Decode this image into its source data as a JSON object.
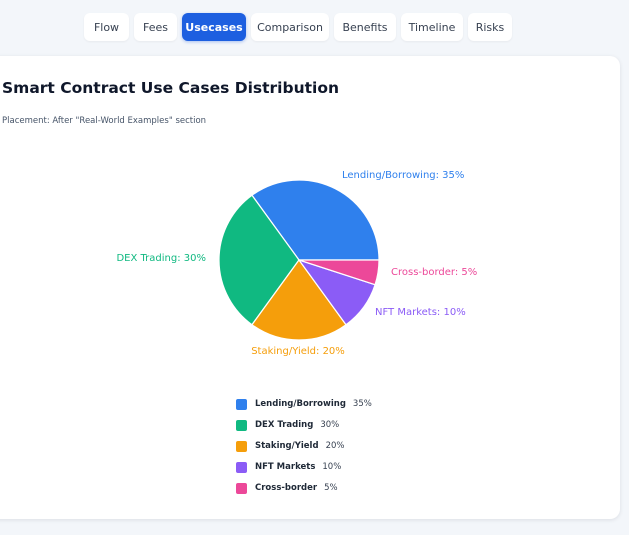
{
  "tabs": [
    {
      "label": "Flow",
      "active": false
    },
    {
      "label": "Fees",
      "active": false
    },
    {
      "label": "Usecases",
      "active": true
    },
    {
      "label": "Comparison",
      "active": false
    },
    {
      "label": "Benefits",
      "active": false
    },
    {
      "label": "Timeline",
      "active": false
    },
    {
      "label": "Risks",
      "active": false
    }
  ],
  "card": {
    "title": "Smart Contract Use Cases Distribution",
    "subtitle": "Placement: After \"Real-World Examples\" section"
  },
  "chart_data": {
    "type": "pie",
    "title": "Smart Contract Use Cases Distribution",
    "slices": [
      {
        "label": "Lending/Borrowing",
        "value": 35,
        "display": "35%",
        "slice_label": "Lending/Borrowing: 35%",
        "color": "#2f80ed"
      },
      {
        "label": "DEX Trading",
        "value": 30,
        "display": "30%",
        "slice_label": "DEX Trading: 30%",
        "color": "#10b981"
      },
      {
        "label": "Staking/Yield",
        "value": 20,
        "display": "20%",
        "slice_label": "Staking/Yield: 20%",
        "color": "#f59e0b"
      },
      {
        "label": "NFT Markets",
        "value": 10,
        "display": "10%",
        "slice_label": "NFT Markets: 10%",
        "color": "#8b5cf6"
      },
      {
        "label": "Cross-border",
        "value": 5,
        "display": "5%",
        "slice_label": "Cross-border: 5%",
        "color": "#ec4899"
      }
    ],
    "legend_position": "bottom"
  }
}
